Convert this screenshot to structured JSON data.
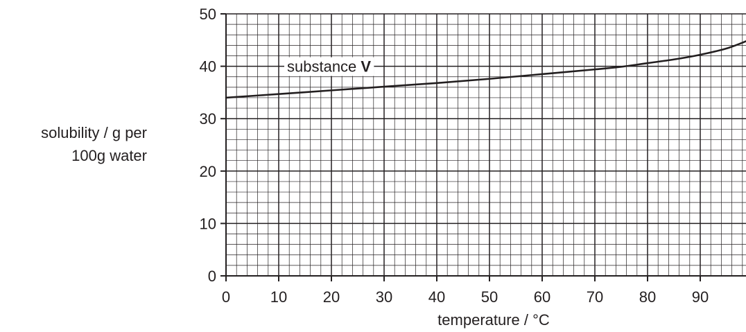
{
  "chart_data": {
    "type": "line",
    "xlabel": "temperature / °C",
    "ylabel_lines": [
      "solubility / g per",
      "100g water"
    ],
    "xlim": [
      0,
      99
    ],
    "ylim": [
      0,
      50
    ],
    "x_ticks": [
      0,
      10,
      20,
      30,
      40,
      50,
      60,
      70,
      80,
      90
    ],
    "y_ticks": [
      0,
      10,
      20,
      30,
      40,
      50
    ],
    "grid": true,
    "series": [
      {
        "name": "substance V",
        "name_prefix": "substance ",
        "name_bold": "V",
        "x": [
          0,
          10,
          20,
          30,
          40,
          50,
          60,
          70,
          75,
          80,
          85,
          90,
          95,
          99
        ],
        "y": [
          34.0,
          34.7,
          35.4,
          36.1,
          36.8,
          37.6,
          38.5,
          39.4,
          39.9,
          40.6,
          41.3,
          42.2,
          43.4,
          44.9
        ]
      }
    ]
  }
}
